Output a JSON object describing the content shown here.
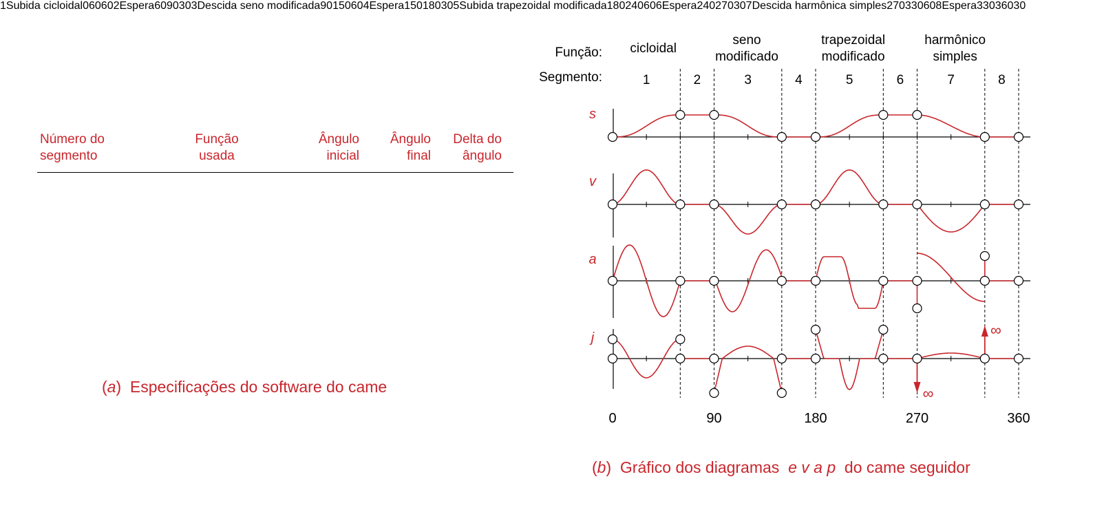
{
  "table": {
    "headers": [
      {
        "key": "segment",
        "lines": [
          "Número do",
          "segmento"
        ]
      },
      {
        "key": "function",
        "lines": [
          "Função",
          "usada"
        ]
      },
      {
        "key": "start",
        "lines": [
          "Ângulo",
          "inicial"
        ]
      },
      {
        "key": "end",
        "lines": [
          "Ângulo",
          "final"
        ]
      },
      {
        "key": "delta",
        "lines": [
          "Delta do",
          "ângulo"
        ]
      }
    ],
    "rows": [
      {
        "segment": "1",
        "function": "Subida cicloidal",
        "start": "0",
        "end": "60",
        "delta": "60"
      },
      {
        "segment": "2",
        "function": "Espera",
        "start": "60",
        "end": "90",
        "delta": "30"
      },
      {
        "segment": "3",
        "function": "Descida seno modificada",
        "start": "90",
        "end": "150",
        "delta": "60"
      },
      {
        "segment": "4",
        "function": "Espera",
        "start": "150",
        "end": "180",
        "delta": "30"
      },
      {
        "segment": "5",
        "function": "Subida trapezoidal modificada",
        "start": "180",
        "end": "240",
        "delta": "60"
      },
      {
        "segment": "6",
        "function": "Espera",
        "start": "240",
        "end": "270",
        "delta": "30"
      },
      {
        "segment": "7",
        "function": "Descida harmônica simples",
        "start": "270",
        "end": "330",
        "delta": "60"
      },
      {
        "segment": "8",
        "function": "Espera",
        "start": "330",
        "end": "360",
        "delta": "30"
      }
    ],
    "caption": {
      "letter": "a",
      "text": "Especificações do software do came"
    }
  },
  "diagram": {
    "function_label": "Função:",
    "segment_label": "Segmento:",
    "function_names": [
      {
        "lines": [
          "cicloidal"
        ]
      },
      {
        "lines": [
          "seno",
          "modificado"
        ]
      },
      {
        "lines": [
          "trapezoidal",
          "modificado"
        ]
      },
      {
        "lines": [
          "harmônico",
          "simples"
        ]
      }
    ],
    "segments": [
      "1",
      "2",
      "3",
      "4",
      "5",
      "6",
      "7",
      "8"
    ],
    "segment_bounds_deg": [
      0,
      60,
      90,
      150,
      180,
      240,
      270,
      330,
      360
    ],
    "plots": [
      "s",
      "v",
      "a",
      "j"
    ],
    "x_labels": [
      "0",
      "90",
      "180",
      "270",
      "360"
    ],
    "infinity_symbol": "∞",
    "caption": {
      "letter": "b",
      "text1": "Gráfico dos diagramas",
      "letters": "e v a p",
      "text2": "do came seguidor"
    }
  },
  "colors": {
    "accent": "#c8262c",
    "ink": "#000000"
  }
}
